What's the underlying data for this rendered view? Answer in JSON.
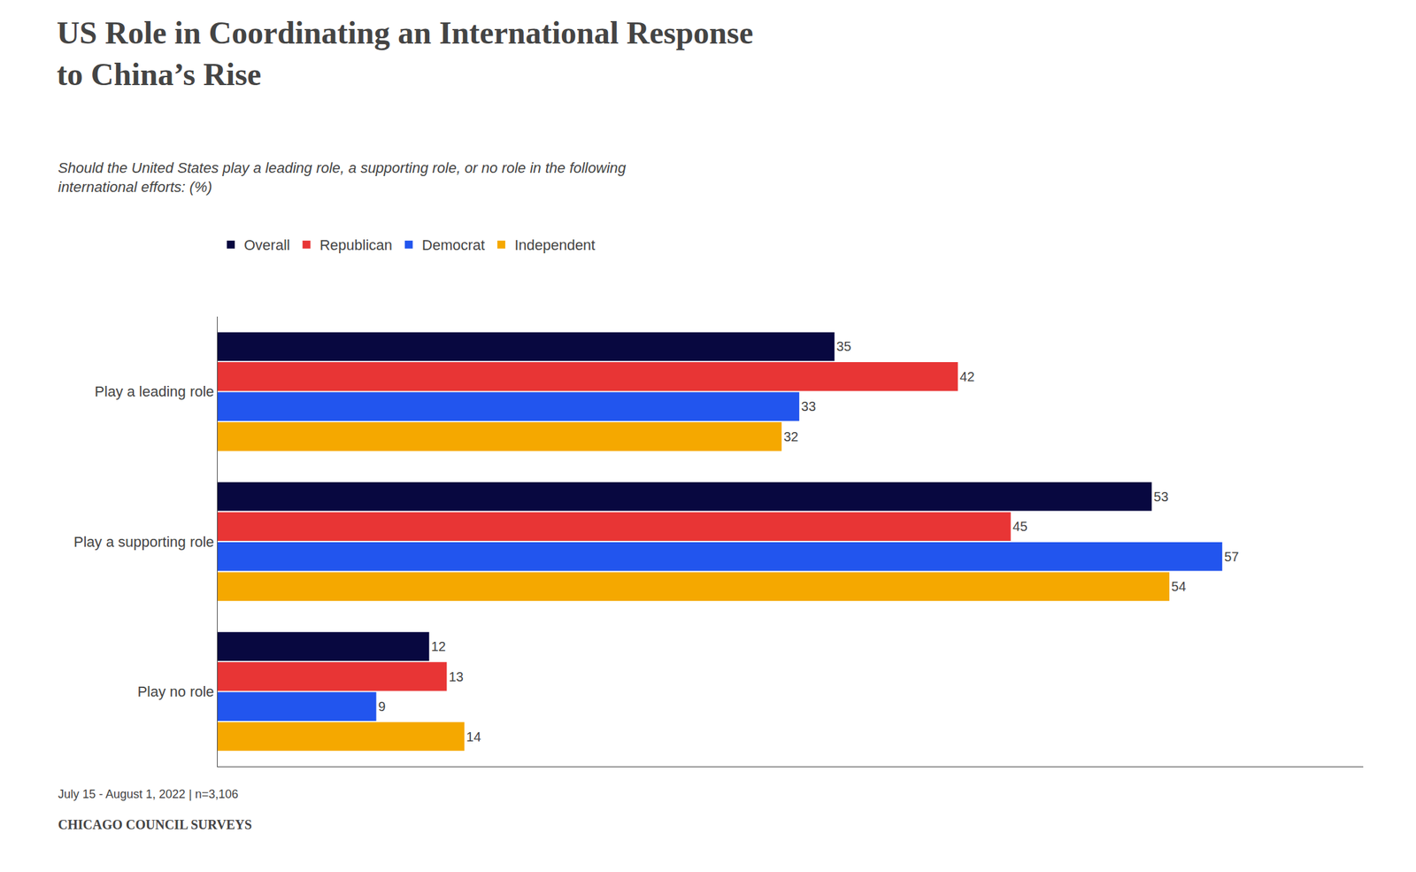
{
  "chart_data": {
    "type": "bar",
    "orientation": "horizontal",
    "title": "US Role in Coordinating an International Response\nto China’s Rise",
    "subtitle": "Should the United States play a leading role, a supporting role, or no role in the following\ninternational efforts: (%)",
    "categories": [
      "Play a leading role",
      "Play a supporting role",
      "Play no role"
    ],
    "series": [
      {
        "name": "Overall",
        "color": "#080840",
        "values": [
          35,
          53,
          12
        ]
      },
      {
        "name": "Republican",
        "color": "#e83535",
        "values": [
          42,
          45,
          13
        ]
      },
      {
        "name": "Democrat",
        "color": "#2255ee",
        "values": [
          33,
          57,
          9
        ]
      },
      {
        "name": "Independent",
        "color": "#f5a800",
        "values": [
          32,
          54,
          14
        ]
      }
    ],
    "xlim": [
      0,
      65
    ],
    "data_labels": true,
    "tick_labels": "y",
    "grid": false,
    "legend": "upper left",
    "annotations": [
      "July 15 - August 1, 2022 | n=3,106",
      "CHICAGO COUNCIL SURVEYS"
    ]
  }
}
